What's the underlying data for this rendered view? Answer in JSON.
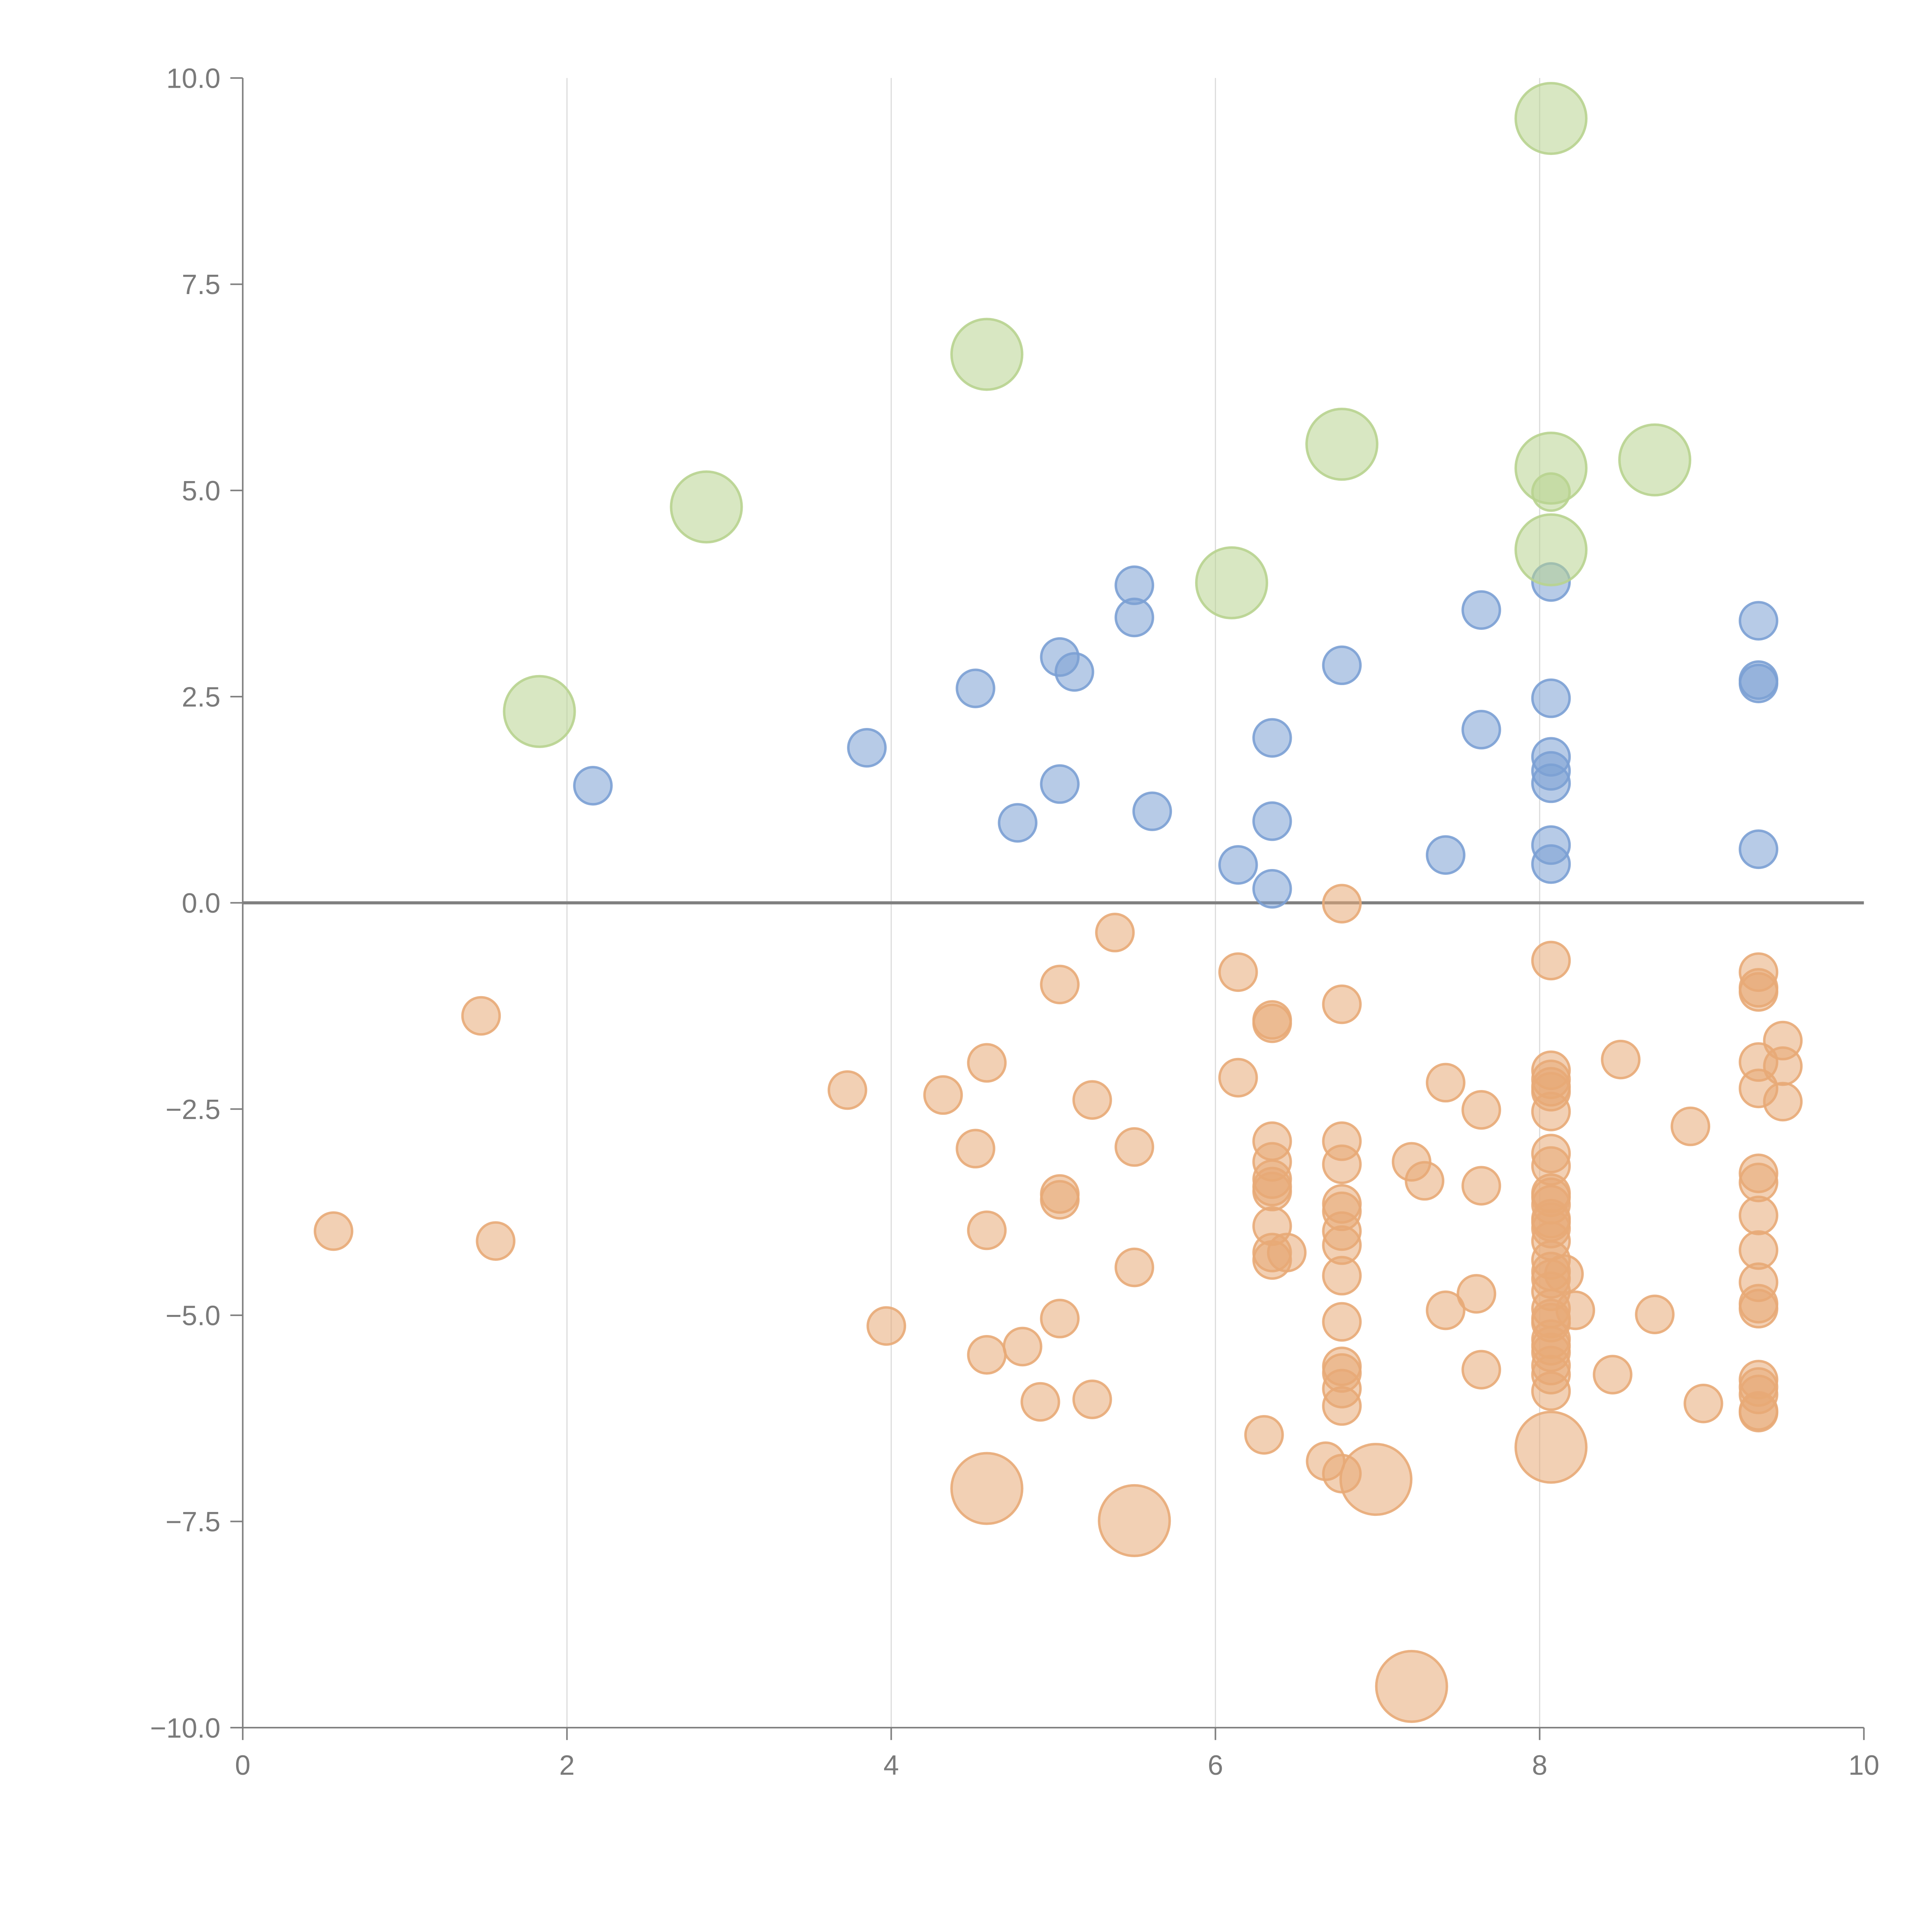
{
  "chart_data": {
    "type": "scatter",
    "title": "",
    "xlabel": "",
    "ylabel": "",
    "xlim": [
      0,
      10
    ],
    "ylim": [
      -10,
      10
    ],
    "x_ticks": [
      0,
      2,
      4,
      6,
      8,
      10
    ],
    "x_tick_labels": [
      "0",
      "2",
      "4",
      "6",
      "8",
      "10"
    ],
    "y_ticks": [
      10,
      7.5,
      5,
      2.5,
      0,
      -2.5,
      -5,
      -7.5,
      -10
    ],
    "y_tick_labels": [
      "10.0",
      "7.5",
      "5.0",
      "2.5",
      "0.0",
      "−2.5",
      "−5.0",
      "−7.5",
      "−10.0"
    ],
    "vertical_gridlines": [
      2,
      4,
      6,
      8
    ],
    "zero_line": 0,
    "legend": "none",
    "series": [
      {
        "name": "blue",
        "color": "#7ba0d4",
        "size": 1,
        "points": [
          [
            2.16,
            1.42
          ],
          [
            3.85,
            1.88
          ],
          [
            4.52,
            2.6
          ],
          [
            4.78,
            0.97
          ],
          [
            5.04,
            1.44
          ],
          [
            5.04,
            2.98
          ],
          [
            5.13,
            2.8
          ],
          [
            5.5,
            3.85
          ],
          [
            5.5,
            3.46
          ],
          [
            5.61,
            1.11
          ],
          [
            6.14,
            0.46
          ],
          [
            6.35,
            2.0
          ],
          [
            6.35,
            0.99
          ],
          [
            6.35,
            0.17
          ],
          [
            6.78,
            2.88
          ],
          [
            7.42,
            0.58
          ],
          [
            7.64,
            3.55
          ],
          [
            7.64,
            2.1
          ],
          [
            8.07,
            3.89
          ],
          [
            8.07,
            2.48
          ],
          [
            8.07,
            1.77
          ],
          [
            8.07,
            1.6
          ],
          [
            8.07,
            1.45
          ],
          [
            8.07,
            0.7
          ],
          [
            8.07,
            0.47
          ],
          [
            9.35,
            3.42
          ],
          [
            9.35,
            2.7
          ],
          [
            9.35,
            2.66
          ],
          [
            9.35,
            0.65
          ]
        ]
      },
      {
        "name": "green",
        "color": "#b8d38f",
        "size": 2,
        "points": [
          [
            1.83,
            2.32
          ],
          [
            2.86,
            4.8
          ],
          [
            4.59,
            6.65
          ],
          [
            6.1,
            3.88
          ],
          [
            6.78,
            5.56
          ],
          [
            8.07,
            9.51
          ],
          [
            8.07,
            5.27
          ],
          [
            8.07,
            4.28
          ],
          [
            8.71,
            5.37
          ]
        ]
      },
      {
        "name": "green-small",
        "color": "#b8d38f",
        "size": 1,
        "points": [
          [
            8.07,
            4.98
          ]
        ]
      },
      {
        "name": "orange",
        "color": "#e8aa77",
        "size": 1,
        "points": [
          [
            0.56,
            -3.98
          ],
          [
            1.47,
            -1.37
          ],
          [
            1.56,
            -4.1
          ],
          [
            3.73,
            -2.27
          ],
          [
            3.97,
            -5.13
          ],
          [
            4.32,
            -2.33
          ],
          [
            4.52,
            -2.98
          ],
          [
            4.59,
            -1.94
          ],
          [
            4.59,
            -3.97
          ],
          [
            4.59,
            -5.48
          ],
          [
            4.81,
            -5.38
          ],
          [
            4.92,
            -6.05
          ],
          [
            5.04,
            -0.99
          ],
          [
            5.04,
            -3.53
          ],
          [
            5.04,
            -3.6
          ],
          [
            5.04,
            -5.04
          ],
          [
            5.24,
            -2.39
          ],
          [
            5.24,
            -6.02
          ],
          [
            5.38,
            -0.36
          ],
          [
            5.5,
            -2.96
          ],
          [
            5.5,
            -4.42
          ],
          [
            6.14,
            -0.84
          ],
          [
            6.14,
            -2.12
          ],
          [
            6.3,
            -6.45
          ],
          [
            6.35,
            -1.42
          ],
          [
            6.35,
            -1.46
          ],
          [
            6.35,
            -2.89
          ],
          [
            6.35,
            -3.14
          ],
          [
            6.35,
            -3.35
          ],
          [
            6.35,
            -3.44
          ],
          [
            6.35,
            -3.5
          ],
          [
            6.35,
            -3.92
          ],
          [
            6.35,
            -4.24
          ],
          [
            6.35,
            -4.33
          ],
          [
            6.44,
            -4.24
          ],
          [
            6.68,
            -6.77
          ],
          [
            6.78,
            -0.01
          ],
          [
            6.78,
            -1.23
          ],
          [
            6.78,
            -2.89
          ],
          [
            6.78,
            -3.17
          ],
          [
            6.78,
            -3.65
          ],
          [
            6.78,
            -3.74
          ],
          [
            6.78,
            -3.98
          ],
          [
            6.78,
            -4.15
          ],
          [
            6.78,
            -4.52
          ],
          [
            6.78,
            -5.08
          ],
          [
            6.78,
            -5.62
          ],
          [
            6.78,
            -5.7
          ],
          [
            6.78,
            -5.89
          ],
          [
            6.78,
            -6.1
          ],
          [
            6.78,
            -6.92
          ],
          [
            7.21,
            -3.14
          ],
          [
            7.29,
            -3.37
          ],
          [
            7.42,
            -2.18
          ],
          [
            7.42,
            -4.94
          ],
          [
            7.61,
            -4.74
          ],
          [
            7.64,
            -2.51
          ],
          [
            7.64,
            -3.43
          ],
          [
            7.64,
            -5.66
          ],
          [
            8.07,
            -0.7
          ],
          [
            8.07,
            -2.03
          ],
          [
            8.07,
            -2.14
          ],
          [
            8.07,
            -2.23
          ],
          [
            8.07,
            -2.29
          ],
          [
            8.07,
            -2.53
          ],
          [
            8.07,
            -3.04
          ],
          [
            8.07,
            -3.19
          ],
          [
            8.07,
            -3.52
          ],
          [
            8.07,
            -3.57
          ],
          [
            8.07,
            -3.66
          ],
          [
            8.07,
            -3.83
          ],
          [
            8.07,
            -3.87
          ],
          [
            8.07,
            -3.95
          ],
          [
            8.07,
            -4.1
          ],
          [
            8.07,
            -4.33
          ],
          [
            8.07,
            -4.47
          ],
          [
            8.07,
            -4.56
          ],
          [
            8.07,
            -4.71
          ],
          [
            8.07,
            -4.92
          ],
          [
            8.07,
            -5.04
          ],
          [
            8.07,
            -5.09
          ],
          [
            8.07,
            -5.29
          ],
          [
            8.07,
            -5.37
          ],
          [
            8.07,
            -5.45
          ],
          [
            8.07,
            -5.61
          ],
          [
            8.07,
            -5.72
          ],
          [
            8.07,
            -5.92
          ],
          [
            8.15,
            -4.5
          ],
          [
            8.22,
            -4.94
          ],
          [
            8.45,
            -5.72
          ],
          [
            8.5,
            -1.9
          ],
          [
            8.71,
            -4.99
          ],
          [
            8.93,
            -2.71
          ],
          [
            9.01,
            -6.07
          ],
          [
            9.35,
            -0.84
          ],
          [
            9.35,
            -1.03
          ],
          [
            9.35,
            -1.08
          ],
          [
            9.35,
            -1.93
          ],
          [
            9.35,
            -2.25
          ],
          [
            9.35,
            -3.28
          ],
          [
            9.35,
            -3.39
          ],
          [
            9.35,
            -3.79
          ],
          [
            9.35,
            -4.21
          ],
          [
            9.35,
            -4.6
          ],
          [
            9.35,
            -4.86
          ],
          [
            9.35,
            -4.92
          ],
          [
            9.35,
            -5.78
          ],
          [
            9.35,
            -5.87
          ],
          [
            9.35,
            -5.96
          ],
          [
            9.35,
            -6.16
          ],
          [
            9.35,
            -6.18
          ],
          [
            9.5,
            -1.67
          ],
          [
            9.5,
            -1.98
          ],
          [
            9.5,
            -2.41
          ]
        ]
      },
      {
        "name": "orange-large",
        "color": "#e8aa77",
        "size": 2,
        "points": [
          [
            4.59,
            -7.1
          ],
          [
            5.5,
            -7.49
          ],
          [
            6.99,
            -6.99
          ],
          [
            7.21,
            -9.5
          ],
          [
            8.07,
            -6.6
          ]
        ]
      }
    ]
  }
}
